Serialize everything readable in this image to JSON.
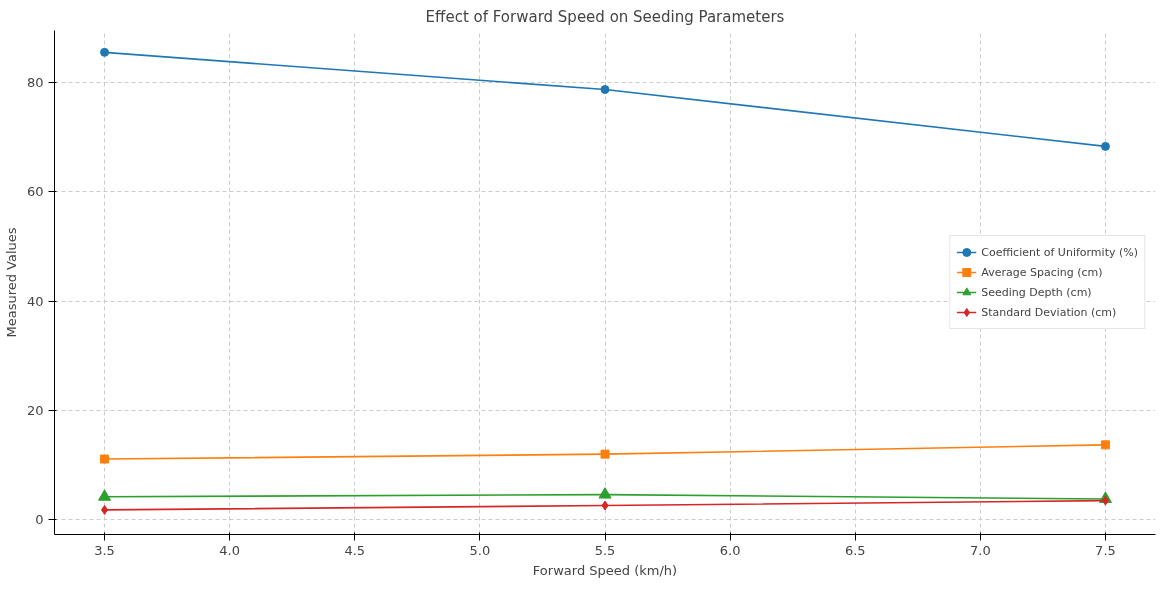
{
  "chart_data": {
    "type": "line",
    "title": "Effect of Forward Speed on Seeding Parameters",
    "xlabel": "Forward Speed (km/h)",
    "ylabel": "Measured Values",
    "x": [
      3.5,
      5.5,
      7.5
    ],
    "series": [
      {
        "name": "Coefficient of Uniformity (%)",
        "color": "#1f77b4",
        "marker": "circle",
        "values": [
          85.5,
          78.7,
          68.3
        ]
      },
      {
        "name": "Average Spacing (cm)",
        "color": "#ff7f0e",
        "marker": "square",
        "values": [
          11.1,
          12.0,
          13.7
        ]
      },
      {
        "name": "Seeding Depth (cm)",
        "color": "#2ca02c",
        "marker": "triangle",
        "values": [
          4.2,
          4.6,
          3.8
        ]
      },
      {
        "name": "Standard Deviation (cm)",
        "color": "#d62728",
        "marker": "diamond",
        "values": [
          1.8,
          2.6,
          3.5
        ]
      }
    ],
    "xlim": [
      3.3,
      7.7
    ],
    "ylim": [
      -2.7,
      89.5
    ],
    "xticks": [
      {
        "value": 3.5,
        "label": "3.5"
      },
      {
        "value": 4,
        "label": "4.0"
      },
      {
        "value": 4.5,
        "label": "4.5"
      },
      {
        "value": 5,
        "label": "5.0"
      },
      {
        "value": 5.5,
        "label": "5.5"
      },
      {
        "value": 6,
        "label": "6.0"
      },
      {
        "value": 6.5,
        "label": "6.5"
      },
      {
        "value": 7,
        "label": "7.0"
      },
      {
        "value": 7.5,
        "label": "7.5"
      }
    ],
    "yticks": [
      0,
      20,
      40,
      60,
      80
    ],
    "grid": true,
    "legend": "right",
    "line_style": "solid"
  }
}
